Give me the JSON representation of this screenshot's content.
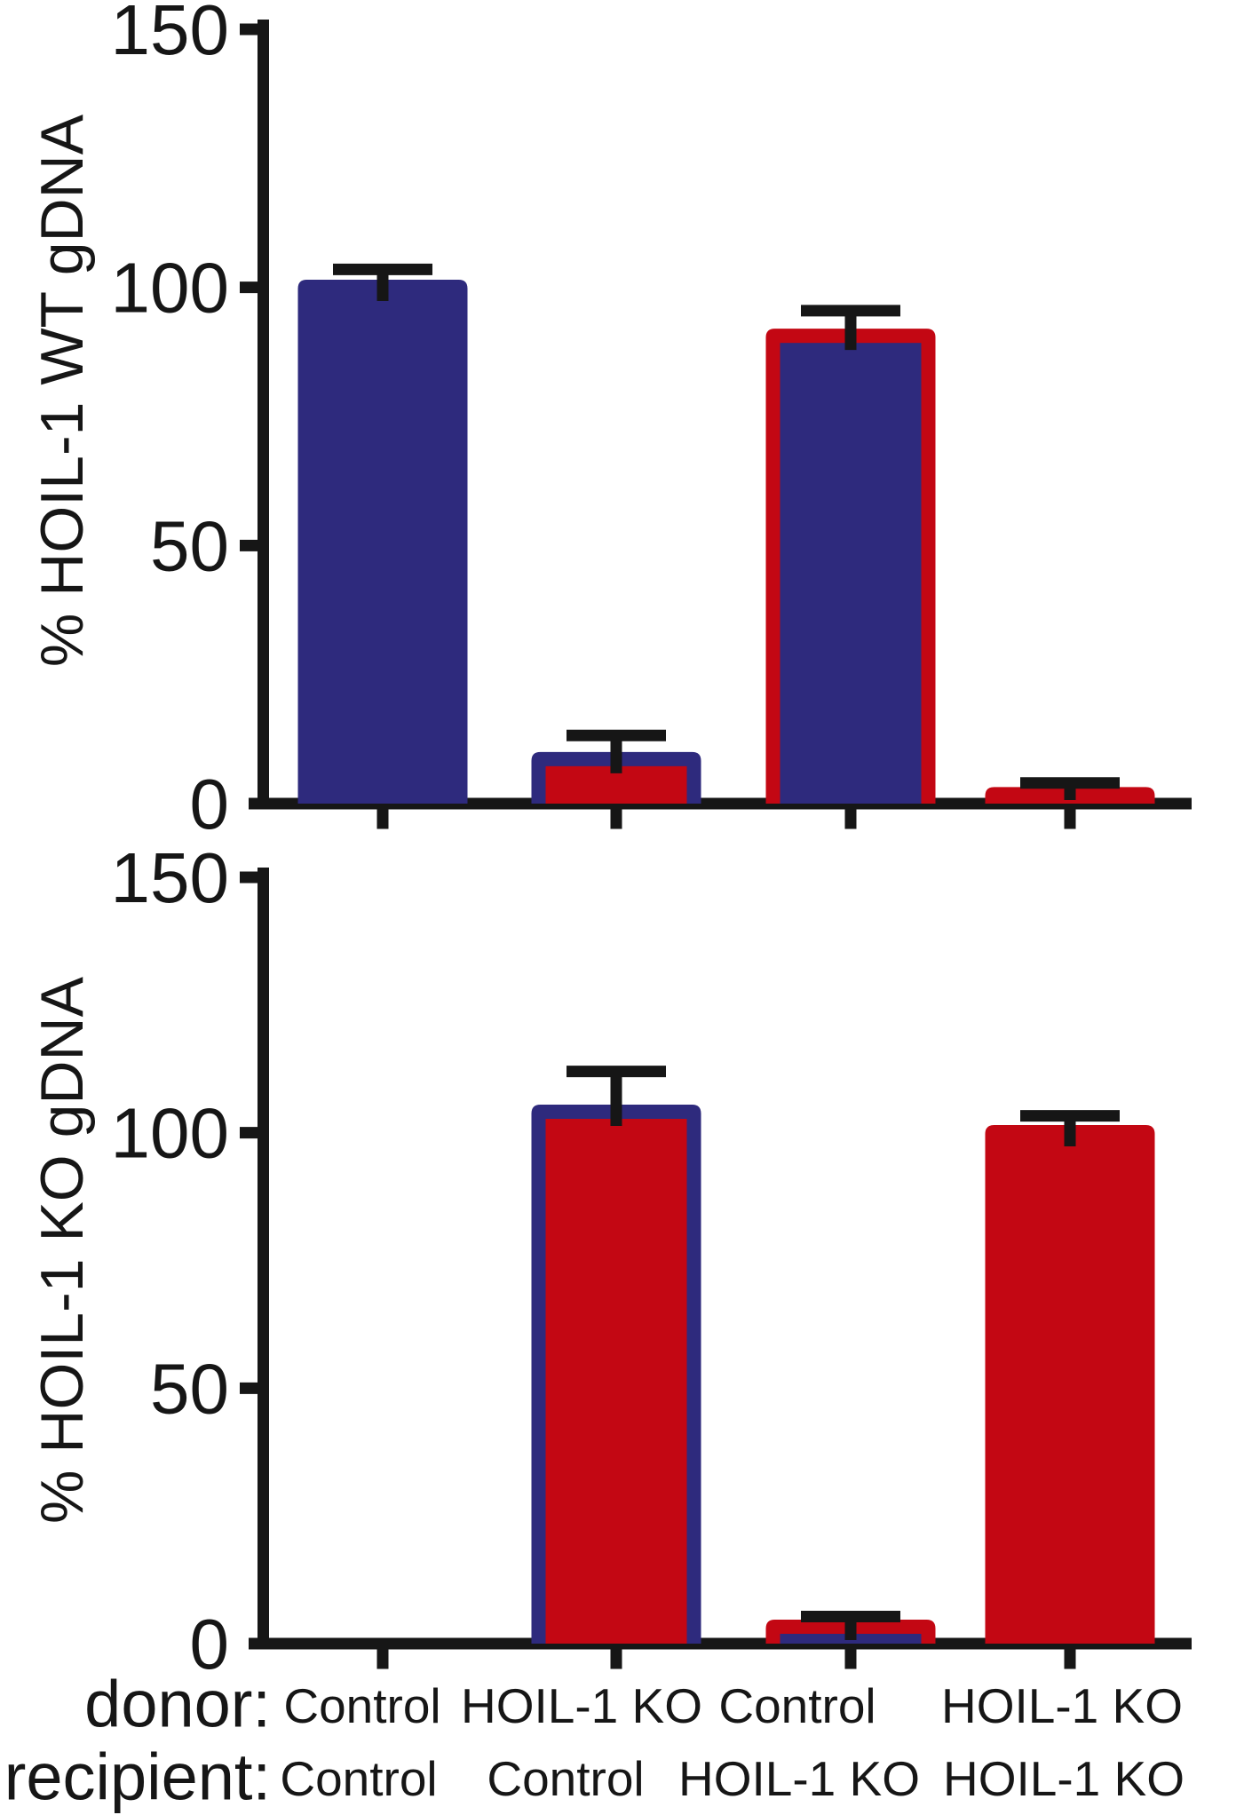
{
  "figure": {
    "background": "#ffffff",
    "colors": {
      "blue": "#2e2a7d",
      "red": "#c30713",
      "black": "#161616"
    },
    "x_axis": {
      "row_labels": [
        "donor:",
        "recipient:"
      ],
      "donor": [
        "Control",
        "HOIL-1 KO",
        "Control",
        "HOIL-1 KO"
      ],
      "recipient": [
        "Control",
        "Control",
        "HOIL-1 KO",
        "HOIL-1 KO"
      ]
    }
  },
  "chart_data": [
    {
      "type": "bar",
      "title": "",
      "ylabel": "% HOIL-1 WT gDNA",
      "xlabel": "",
      "ylim": [
        0,
        150
      ],
      "yticks": [
        0,
        50,
        100,
        150
      ],
      "grid": false,
      "legend": "none",
      "categories": [
        "Control/Control",
        "HOIL-1 KO/Control",
        "Control/HOIL-1 KO",
        "HOIL-1 KO/HOIL-1 KO"
      ],
      "values": [
        101.5,
        10,
        92,
        3.2
      ],
      "errors_upper_sem": [
        2.0,
        3.2,
        3.5,
        0.8
      ],
      "bar_fill": [
        "blue",
        "red",
        "blue",
        "red"
      ],
      "bar_border": [
        "blue",
        "blue",
        "red",
        "red"
      ]
    },
    {
      "type": "bar",
      "title": "",
      "ylabel": "% HOIL-1 KO gDNA",
      "xlabel": "",
      "ylim": [
        0,
        150
      ],
      "yticks": [
        0,
        50,
        100,
        150
      ],
      "grid": false,
      "legend": "none",
      "categories": [
        "Control/Control",
        "HOIL-1 KO/Control",
        "Control/HOIL-1 KO",
        "HOIL-1 KO/HOIL-1 KO"
      ],
      "values": [
        0,
        105.5,
        4.7,
        101.5
      ],
      "errors_upper_sem": [
        0,
        6.5,
        0.6,
        1.8
      ],
      "bar_fill": [
        null,
        "red",
        "blue",
        "red"
      ],
      "bar_border": [
        null,
        "blue",
        "red",
        "red"
      ]
    }
  ]
}
